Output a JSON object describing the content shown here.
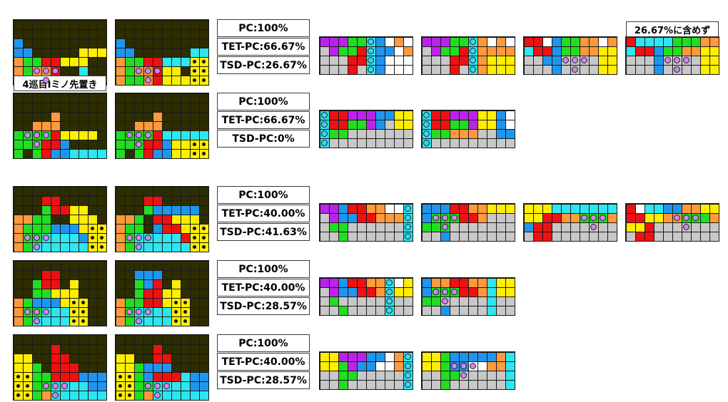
{
  "palette": {
    ".": "#2d2d00",
    "g": "#c8c8c8",
    "O": "#ff9a3c",
    "Z": "#ee1111",
    "S": "#22dd22",
    "J": "#1f96ee",
    "I": "#2ee6f0",
    "Y": "#ffee00",
    "T": "#bb22ee"
  },
  "notes": {
    "iminor": "4巡目Iミノ先置き",
    "excluded": "26.67%に含めず"
  },
  "groups": [
    {
      "stats": [
        "PC:100%",
        "TET-PC:66.67%",
        "TSD-PC:26.67%"
      ],
      "boards": [
        [
          "........",
          "..........",
          "J.........",
          "JJ.....YYY",
          "OSSZZYYY..",
          "OSOOZ..I..",
          "OSSOZJIIII"
        ],
        [
          "........",
          "..........",
          "J.........",
          "JJ......II",
          "OSSZZIIIPP",
          "OSOOZYY.PP",
          "OSSOZYYYPP"
        ]
      ],
      "solutions": [
        [
          "TTTSSIJ.O.",
          "GTSSZIJJ.O",
          "GGGZZIJ...",
          "GGGZGIJ..."
        ],
        [
          "TTTSSIO.O.",
          "GTSSZIOOOO",
          "GGGZZIOYYY",
          "GGGZGIOYYY"
        ],
        [
          "ZZ.JSSOO.O",
          "IZZJSSOOYY",
          "GGJJGGGGYY",
          "GGGJGGGGYY"
        ],
        [
          "ZIIIISSSOO",
          "IZZJSSOOYY",
          "GGGJGGGGYY",
          "GGGJGGGGYY"
        ]
      ]
    },
    {
      "stats": [
        "PC:100%",
        "TET-PC:66.67%",
        "TSD-PC:0%"
      ],
      "boards": [
        [
          "........",
          "..........",
          "....O.....",
          "..OOO.....",
          "SSSSZYYYY.",
          "SSSZZJ....",
          "S.SZJJIIII"
        ],
        [
          "........",
          "..........",
          "....O.....",
          "..OOO.....",
          "SSSSZIIIII",
          "SSSZZJYYPP",
          "S.SZJJYYPP"
        ]
      ],
      "solutions": [
        [
          "IZZTTTJJYY",
          "IZZSSTJGYY",
          "ISSGGGGGGG",
          "IGGGGGGGGG"
        ],
        [
          "IZZTTTYYJ.",
          "IZZSSTYYJ.",
          "ISSOOOGGJJ",
          "IGGGGGGGGG"
        ]
      ]
    },
    {
      "stats": [
        "PC:100%",
        "TET-PC:40.00%",
        "TSD-PC:41.63%"
      ],
      "boards": [
        [
          "........",
          "...ZZ.....",
          "...SZZYY..",
          "OOSS..YYY.",
          "OSSSJJJYPP",
          "OSSIIIIJPP",
          "OSIIIIIIPP"
        ],
        [
          "........",
          "...ZZ.....",
          "...SJJJJJ.",
          "OOS.ZZYYY.",
          "OSS.JZZYPP",
          "OSIIIIIZPP",
          "OSIIIIIIPP"
        ]
      ],
      "solutions": [
        [
          "TTJZZOO..I",
          "GTJJZZOOOI",
          "GSSGGGGGGI",
          "GGSGGGGGGI"
        ],
        [
          "JJJZZOOYYY",
          "JSSSZZOGGG",
          "SSSGGGGGGG",
          "GGJGGGGGGG"
        ],
        [
          "YYYIIIIIII",
          "YYZZOOSSSO",
          "JZZGGGGGGG",
          "GZZGGGGGGG"
        ],
        [
          "Z.IIJJOOYY",
          "ZZYYOOSSSO",
          "YYZGGGGGGG",
          "GZZGGGGGGG"
        ]
      ]
    },
    {
      "stats": [
        "PC:100%",
        "TET-PC:40.00%",
        "TSD-PC:28.57%"
      ],
      "boards": [
        [
          "........",
          "...ZZ.....",
          "..SZZ.Y...",
          "..SSYYY...",
          "OSJJJYPP..",
          "OSSIIIPP..",
          "OSIIIIPP.."
        ],
        [
          "........",
          "..JJJ.....",
          "..SJZ.Y...",
          "..SZZYY...",
          "OSSZZYPP..",
          "OSIIIIPP..",
          "OSIIIIPP.."
        ]
      ],
      "solutions": [
        [
          "TTJZZOOI.Y",
          "GTJJZZOIYY",
          "GSGGGGGIGG",
          "GGSGGGGIGG"
        ],
        [
          "JOOZZOOIYY",
          "JSSSZZOIYY",
          "SSGGGGGIGG",
          "GGJGGGGIGG"
        ]
      ]
    },
    {
      "stats": [
        "PC:100%",
        "TET-PC:40.00%",
        "TSD-PC:28.57%"
      ],
      "boards": [
        [
          "........",
          "....Z...",
          "YY..ZZ....",
          "YYS.ZZZ...",
          "PPSSZZZJJJ",
          "PPSSIIIIJJ",
          "PPSOIIIIII"
        ],
        [
          "........",
          "....Z...",
          "YY..ZZ....",
          "YYSJJJ....",
          "PPSJZZZIJJ",
          "PPSSIIIIJJ",
          "PPSOIIIIII"
        ]
      ],
      "solutions": [
        [
          "YYTTTJJ.OI",
          "YYSTJJ..OI",
          "GGSSGGGGGI",
          "GGSGGGGGGI"
        ],
        [
          "YYSJJJJJOI",
          "YYSJJ..OOI",
          "GGSSGGGGGI",
          "GGSGGGGGGI"
        ]
      ]
    }
  ]
}
